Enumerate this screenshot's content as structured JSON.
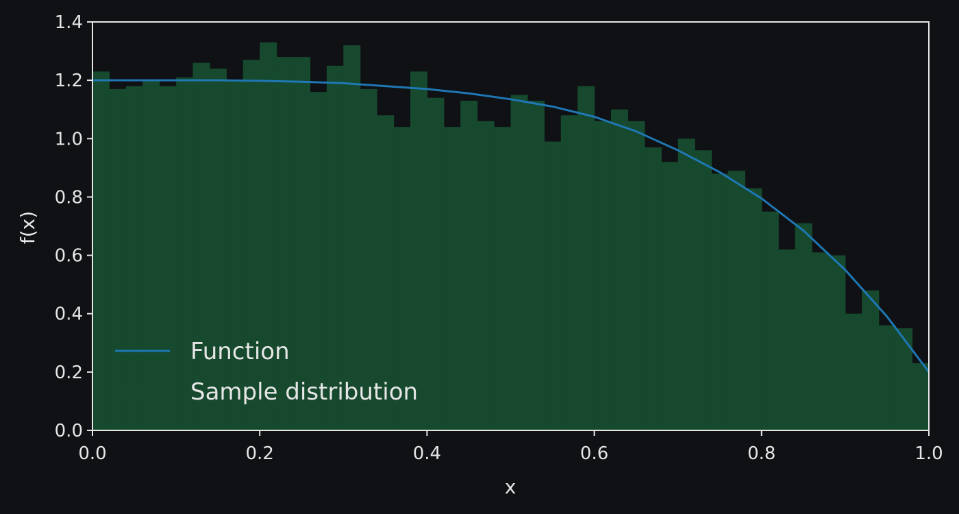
{
  "chart_data": {
    "type": "area",
    "title": "",
    "xlabel": "x",
    "ylabel": "f(x)",
    "xlim": [
      0.0,
      1.0
    ],
    "ylim": [
      0.0,
      1.4
    ],
    "xticks": [
      0.0,
      0.2,
      0.4,
      0.6,
      0.8,
      1.0
    ],
    "yticks": [
      0.0,
      0.2,
      0.4,
      0.6,
      0.8,
      1.0,
      1.2,
      1.4
    ],
    "xtick_labels": [
      "0.0",
      "0.2",
      "0.4",
      "0.6",
      "0.8",
      "1.0"
    ],
    "ytick_labels": [
      "0.0",
      "0.2",
      "0.4",
      "0.6",
      "0.8",
      "1.0",
      "1.2",
      "1.4"
    ],
    "grid": false,
    "legend": {
      "placement": "lower-left",
      "entries": [
        "Function",
        "Sample distribution"
      ]
    },
    "series": [
      {
        "name": "Function",
        "kind": "line",
        "color": "#1f77b4",
        "x": [
          0.0,
          0.05,
          0.1,
          0.15,
          0.2,
          0.25,
          0.3,
          0.35,
          0.4,
          0.45,
          0.5,
          0.55,
          0.6,
          0.65,
          0.7,
          0.75,
          0.8,
          0.85,
          0.9,
          0.95,
          1.0
        ],
        "y": [
          1.2,
          1.2,
          1.2,
          1.2,
          1.198,
          1.195,
          1.19,
          1.18,
          1.17,
          1.155,
          1.135,
          1.11,
          1.075,
          1.025,
          0.96,
          0.885,
          0.795,
          0.685,
          0.55,
          0.39,
          0.2
        ]
      },
      {
        "name": "Sample distribution",
        "kind": "histogram",
        "color": "#16492e",
        "bin_edges": [
          0.0,
          0.02,
          0.04,
          0.06,
          0.08,
          0.1,
          0.12,
          0.14,
          0.16,
          0.18,
          0.2,
          0.22,
          0.24,
          0.26,
          0.28,
          0.3,
          0.32,
          0.34,
          0.36,
          0.38,
          0.4,
          0.42,
          0.44,
          0.46,
          0.48,
          0.5,
          0.52,
          0.54,
          0.56,
          0.58,
          0.6,
          0.62,
          0.64,
          0.66,
          0.68,
          0.7,
          0.72,
          0.74,
          0.76,
          0.78,
          0.8,
          0.82,
          0.84,
          0.86,
          0.88,
          0.9,
          0.92,
          0.94,
          0.96,
          0.98,
          1.0
        ],
        "values": [
          1.23,
          1.17,
          1.18,
          1.2,
          1.18,
          1.21,
          1.26,
          1.24,
          1.2,
          1.27,
          1.33,
          1.28,
          1.28,
          1.16,
          1.25,
          1.32,
          1.17,
          1.08,
          1.04,
          1.23,
          1.14,
          1.04,
          1.13,
          1.06,
          1.04,
          1.15,
          1.13,
          0.99,
          1.08,
          1.18,
          1.06,
          1.1,
          1.06,
          0.97,
          0.92,
          1.0,
          0.96,
          0.88,
          0.89,
          0.83,
          0.75,
          0.62,
          0.71,
          0.61,
          0.6,
          0.4,
          0.48,
          0.36,
          0.35,
          0.23
        ]
      }
    ]
  }
}
